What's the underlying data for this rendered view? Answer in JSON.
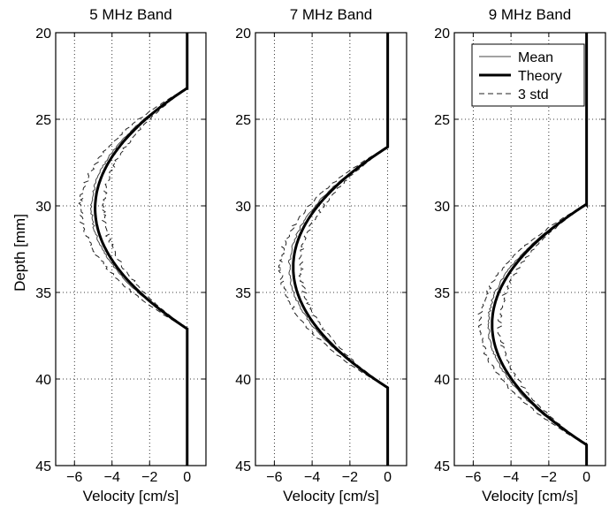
{
  "figure": {
    "ylabel": "Depth [mm]",
    "legend": {
      "entries": [
        "Mean",
        "Theory",
        "3 std"
      ]
    }
  },
  "chart_data": [
    {
      "type": "line",
      "title": "5 MHz Band",
      "xlabel": "Velocity [cm/s]",
      "ylabel": "Depth [mm]",
      "xlim": [
        -7,
        1
      ],
      "ylim": [
        20,
        45
      ],
      "y_reversed": true,
      "xticks": [
        -6,
        -4,
        -2,
        0
      ],
      "yticks": [
        20,
        25,
        30,
        35,
        40,
        45
      ],
      "grid": true,
      "theory": {
        "vmax": 4.9,
        "depth_top": 23.2,
        "depth_bottom": 37.1
      },
      "series": [
        {
          "name": "Mean",
          "style": "thin-solid"
        },
        {
          "name": "Theory",
          "style": "thick-solid"
        },
        {
          "name": "3 std",
          "style": "dashed",
          "spread": 0.7
        }
      ]
    },
    {
      "type": "line",
      "title": "7 MHz Band",
      "xlabel": "Velocity [cm/s]",
      "ylabel": "",
      "xlim": [
        -7,
        1
      ],
      "ylim": [
        20,
        45
      ],
      "y_reversed": true,
      "xticks": [
        -6,
        -4,
        -2,
        0
      ],
      "yticks": [
        20,
        25,
        30,
        35,
        40,
        45
      ],
      "grid": true,
      "theory": {
        "vmax": 5.0,
        "depth_top": 26.6,
        "depth_bottom": 40.5
      },
      "series": [
        {
          "name": "Mean",
          "style": "thin-solid"
        },
        {
          "name": "Theory",
          "style": "thick-solid"
        },
        {
          "name": "3 std",
          "style": "dashed",
          "spread": 0.6
        }
      ]
    },
    {
      "type": "line",
      "title": "9 MHz Band",
      "xlabel": "Velocity [cm/s]",
      "ylabel": "",
      "xlim": [
        -7,
        1
      ],
      "ylim": [
        20,
        45
      ],
      "y_reversed": true,
      "xticks": [
        -6,
        -4,
        -2,
        0
      ],
      "yticks": [
        20,
        25,
        30,
        35,
        40,
        45
      ],
      "grid": true,
      "legend_position": "top-right",
      "theory": {
        "vmax": 5.0,
        "depth_top": 29.9,
        "depth_bottom": 43.8
      },
      "series": [
        {
          "name": "Mean",
          "style": "thin-solid"
        },
        {
          "name": "Theory",
          "style": "thick-solid"
        },
        {
          "name": "3 std",
          "style": "dashed",
          "spread": 0.6
        }
      ]
    }
  ]
}
